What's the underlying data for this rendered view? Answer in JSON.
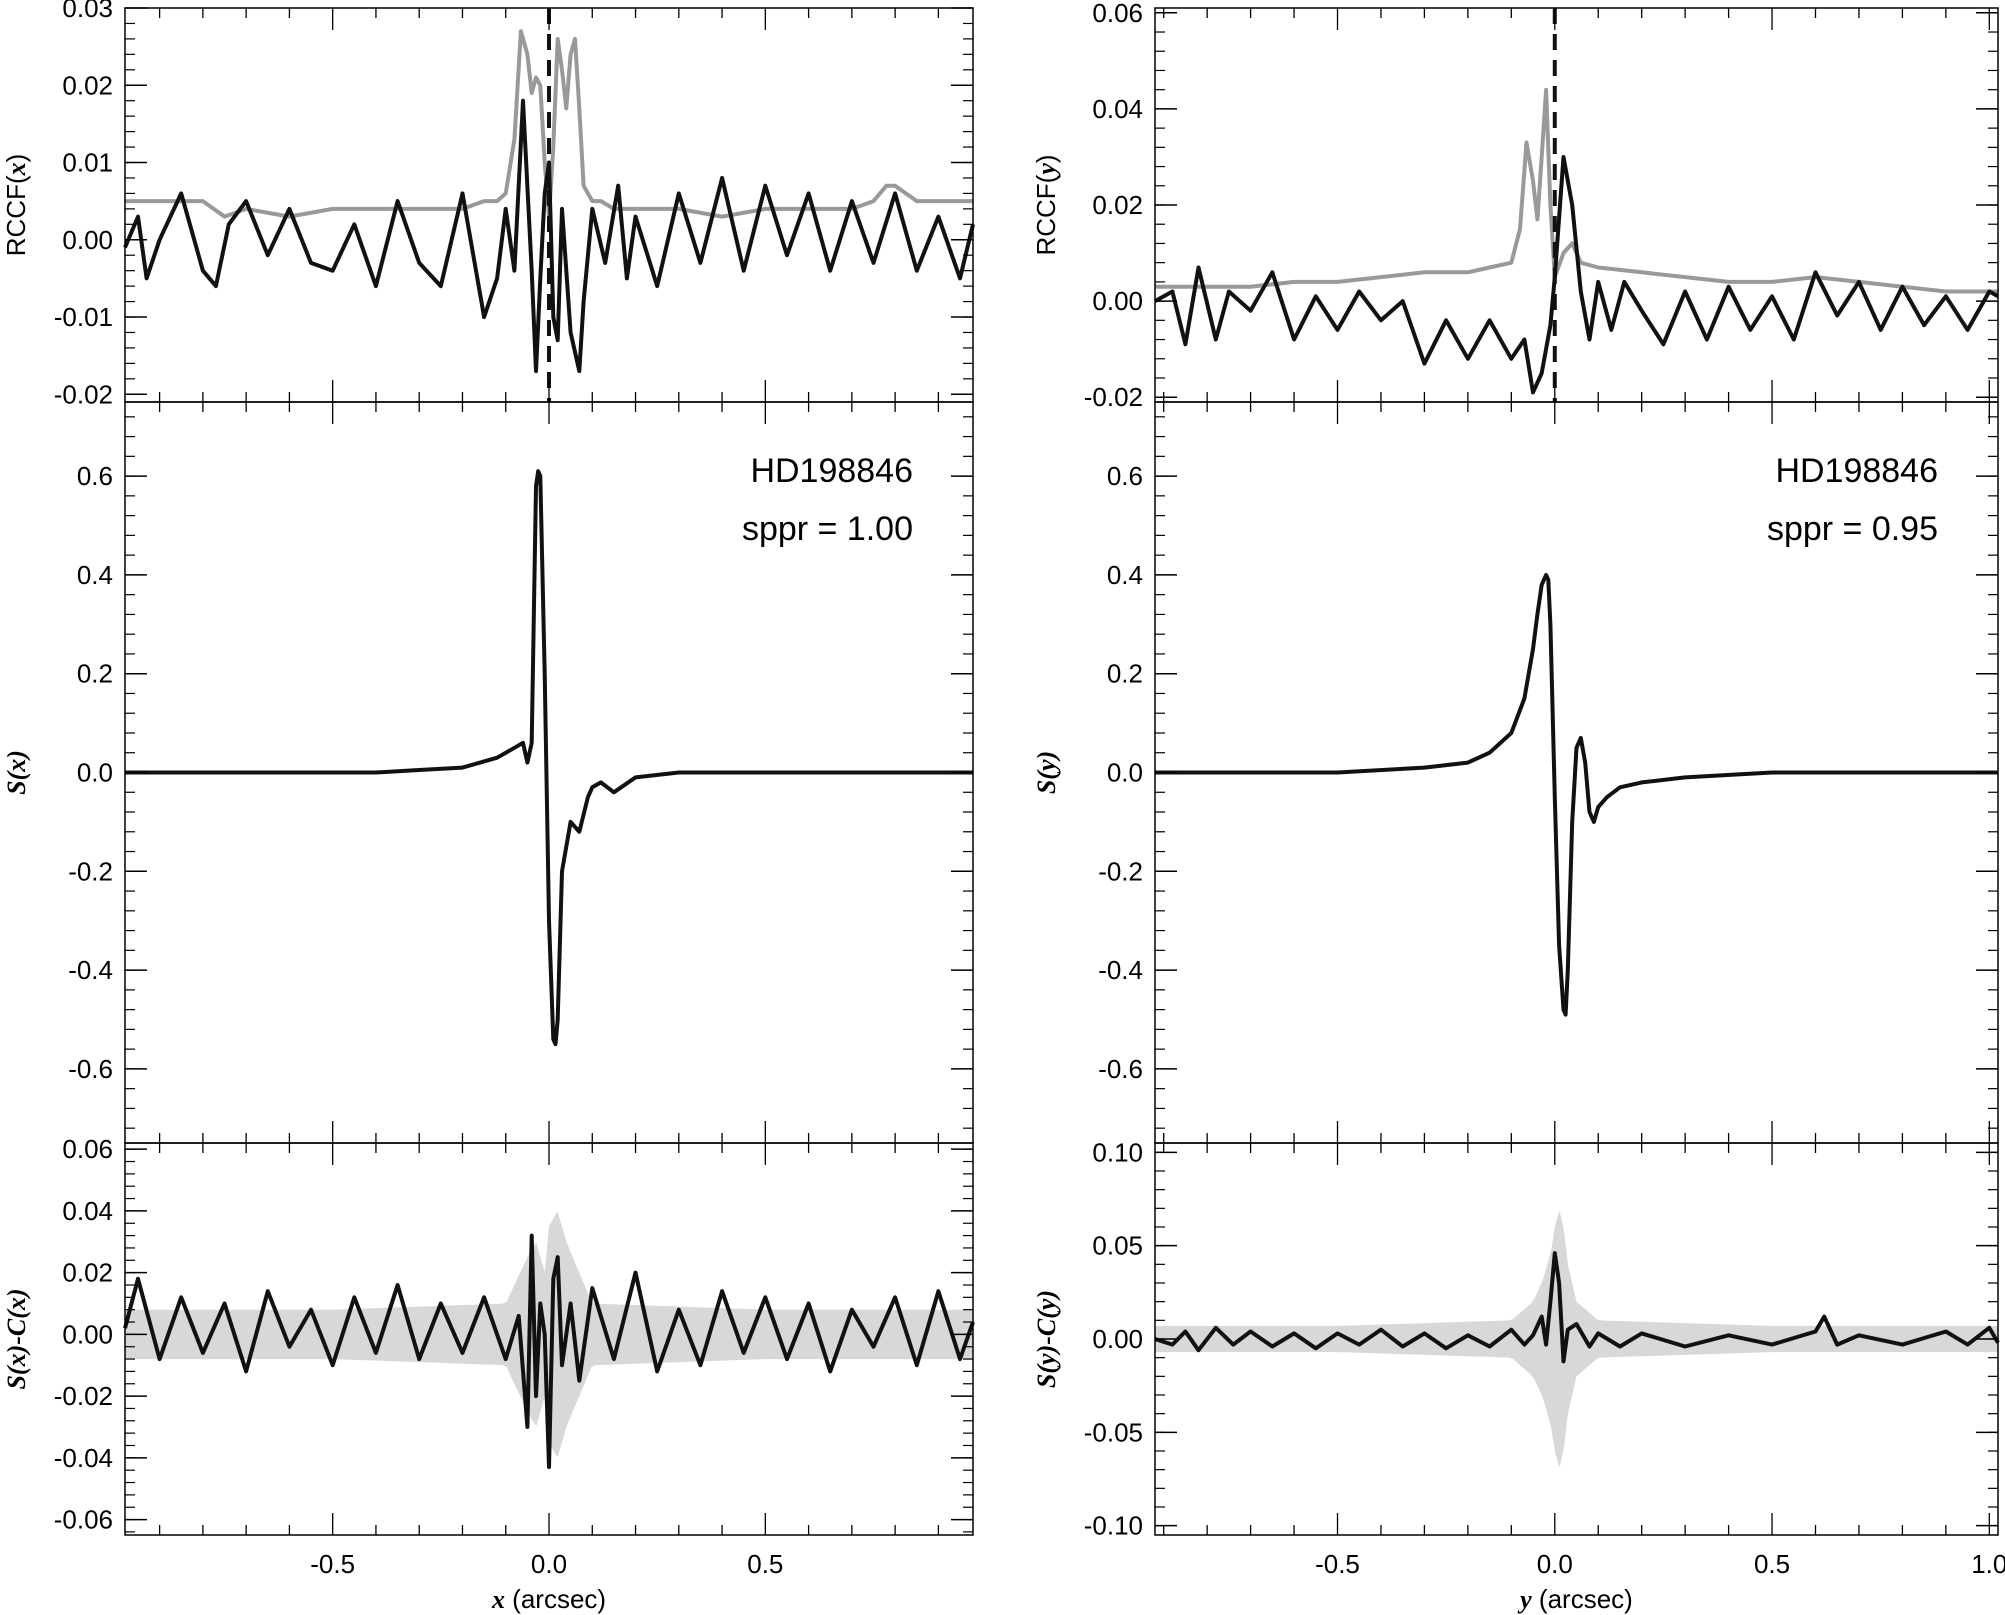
{
  "chart_data": [
    {
      "type": "line",
      "panel": "top-left",
      "ylabel_main": "RCCF(",
      "ylabel_var": "x",
      "ylabel_close": ")",
      "xlim": [
        -0.98,
        0.98
      ],
      "ylim": [
        -0.021,
        0.03
      ],
      "yticks": [
        -0.02,
        -0.01,
        0.0,
        0.01,
        0.02,
        0.03
      ],
      "ytick_labels": [
        "-0.02",
        "-0.01",
        "0.00",
        "0.01",
        "0.02",
        "0.03"
      ],
      "vline_x": 0.0,
      "series": [
        {
          "color": "#999999",
          "x": [
            -0.98,
            -0.8,
            -0.75,
            -0.7,
            -0.6,
            -0.5,
            -0.4,
            -0.3,
            -0.2,
            -0.15,
            -0.12,
            -0.1,
            -0.08,
            -0.065,
            -0.05,
            -0.04,
            -0.03,
            -0.02,
            -0.01,
            0.0,
            0.01,
            0.02,
            0.03,
            0.04,
            0.05,
            0.06,
            0.07,
            0.08,
            0.09,
            0.1,
            0.12,
            0.15,
            0.2,
            0.3,
            0.4,
            0.5,
            0.6,
            0.7,
            0.75,
            0.78,
            0.8,
            0.85,
            0.9,
            0.98
          ],
          "y": [
            0.005,
            0.005,
            0.003,
            0.004,
            0.003,
            0.004,
            0.004,
            0.004,
            0.004,
            0.005,
            0.005,
            0.006,
            0.013,
            0.027,
            0.024,
            0.019,
            0.021,
            0.02,
            0.01,
            0.003,
            0.012,
            0.026,
            0.022,
            0.017,
            0.024,
            0.026,
            0.017,
            0.007,
            0.006,
            0.005,
            0.005,
            0.004,
            0.004,
            0.004,
            0.003,
            0.004,
            0.004,
            0.004,
            0.005,
            0.007,
            0.007,
            0.005,
            0.005,
            0.005
          ]
        },
        {
          "color": "#111111",
          "x": [
            -0.98,
            -0.95,
            -0.93,
            -0.9,
            -0.85,
            -0.8,
            -0.77,
            -0.74,
            -0.7,
            -0.65,
            -0.6,
            -0.55,
            -0.5,
            -0.45,
            -0.4,
            -0.35,
            -0.3,
            -0.25,
            -0.2,
            -0.15,
            -0.12,
            -0.1,
            -0.08,
            -0.06,
            -0.04,
            -0.03,
            -0.02,
            -0.01,
            0.0,
            0.01,
            0.02,
            0.03,
            0.05,
            0.07,
            0.08,
            0.1,
            0.13,
            0.16,
            0.18,
            0.2,
            0.25,
            0.3,
            0.35,
            0.4,
            0.45,
            0.5,
            0.55,
            0.6,
            0.65,
            0.7,
            0.75,
            0.8,
            0.85,
            0.9,
            0.95,
            0.98
          ],
          "y": [
            -0.001,
            0.003,
            -0.005,
            0.0,
            0.006,
            -0.004,
            -0.006,
            0.002,
            0.005,
            -0.002,
            0.004,
            -0.003,
            -0.004,
            0.002,
            -0.006,
            0.005,
            -0.003,
            -0.006,
            0.006,
            -0.01,
            -0.005,
            0.004,
            -0.004,
            0.018,
            -0.004,
            -0.017,
            -0.005,
            0.006,
            0.01,
            -0.01,
            -0.013,
            0.004,
            -0.012,
            -0.017,
            -0.008,
            0.004,
            -0.003,
            0.007,
            -0.005,
            0.003,
            -0.006,
            0.006,
            -0.003,
            0.008,
            -0.004,
            0.007,
            -0.002,
            0.006,
            -0.004,
            0.005,
            -0.003,
            0.006,
            -0.004,
            0.003,
            -0.005,
            0.002
          ]
        }
      ]
    },
    {
      "type": "line",
      "panel": "mid-left",
      "ylabel_var": "S(x)",
      "xlim": [
        -0.98,
        0.98
      ],
      "ylim": [
        -0.75,
        0.75
      ],
      "yticks": [
        -0.6,
        -0.4,
        -0.2,
        0.0,
        0.2,
        0.4,
        0.6
      ],
      "ytick_labels": [
        "-0.6",
        "-0.4",
        "-0.2",
        "0.0",
        "0.2",
        "0.4",
        "0.6"
      ],
      "annotation": [
        "HD198846",
        "sppr = 1.00"
      ],
      "series": [
        {
          "color": "#111111",
          "x": [
            -0.98,
            -0.8,
            -0.6,
            -0.4,
            -0.3,
            -0.2,
            -0.12,
            -0.08,
            -0.06,
            -0.05,
            -0.04,
            -0.03,
            -0.025,
            -0.02,
            -0.01,
            0.0,
            0.01,
            0.015,
            0.02,
            0.03,
            0.05,
            0.07,
            0.09,
            0.1,
            0.12,
            0.15,
            0.2,
            0.3,
            0.5,
            0.7,
            0.98
          ],
          "y": [
            0.0,
            0.0,
            0.0,
            0.0,
            0.005,
            0.01,
            0.03,
            0.05,
            0.06,
            0.02,
            0.06,
            0.58,
            0.61,
            0.6,
            0.2,
            -0.3,
            -0.54,
            -0.55,
            -0.5,
            -0.2,
            -0.1,
            -0.12,
            -0.05,
            -0.03,
            -0.02,
            -0.04,
            -0.01,
            0.0,
            0.0,
            0.0,
            0.0
          ]
        }
      ]
    },
    {
      "type": "line",
      "panel": "bot-left",
      "ylabel_var": "S(x)-C(x)",
      "xlim": [
        -0.98,
        0.98
      ],
      "ylim": [
        -0.065,
        0.062
      ],
      "yticks": [
        -0.06,
        -0.04,
        -0.02,
        0.0,
        0.02,
        0.04,
        0.06
      ],
      "ytick_labels": [
        "-0.06",
        "-0.04",
        "-0.02",
        "0.00",
        "0.02",
        "0.04",
        "0.06"
      ],
      "xticks": [
        -0.5,
        0.0,
        0.5
      ],
      "xtick_labels": [
        "-0.5",
        "0.0",
        "0.5"
      ],
      "xlabel_var": "x",
      "xlabel_text": "(arcsec)",
      "band": {
        "color": "#d8d8d8",
        "x": [
          -0.98,
          -0.5,
          -0.1,
          -0.05,
          -0.03,
          -0.01,
          0.0,
          0.02,
          0.04,
          0.1,
          0.5,
          0.98
        ],
        "half_width": [
          0.008,
          0.008,
          0.01,
          0.025,
          0.03,
          0.02,
          0.035,
          0.04,
          0.03,
          0.01,
          0.008,
          0.008
        ]
      },
      "series": [
        {
          "color": "#111111",
          "x": [
            -0.98,
            -0.95,
            -0.9,
            -0.85,
            -0.8,
            -0.75,
            -0.7,
            -0.65,
            -0.6,
            -0.55,
            -0.5,
            -0.45,
            -0.4,
            -0.35,
            -0.3,
            -0.25,
            -0.2,
            -0.15,
            -0.1,
            -0.07,
            -0.05,
            -0.04,
            -0.03,
            -0.02,
            -0.01,
            0.0,
            0.01,
            0.02,
            0.03,
            0.05,
            0.07,
            0.1,
            0.15,
            0.2,
            0.25,
            0.3,
            0.35,
            0.4,
            0.45,
            0.5,
            0.55,
            0.6,
            0.65,
            0.7,
            0.75,
            0.8,
            0.85,
            0.9,
            0.95,
            0.98
          ],
          "y": [
            0.002,
            0.018,
            -0.008,
            0.012,
            -0.006,
            0.01,
            -0.012,
            0.014,
            -0.004,
            0.008,
            -0.01,
            0.012,
            -0.006,
            0.016,
            -0.008,
            0.01,
            -0.006,
            0.012,
            -0.008,
            0.006,
            -0.03,
            0.032,
            -0.02,
            0.01,
            0.0,
            -0.043,
            0.018,
            0.025,
            -0.01,
            0.01,
            -0.015,
            0.015,
            -0.008,
            0.02,
            -0.012,
            0.008,
            -0.01,
            0.014,
            -0.006,
            0.012,
            -0.008,
            0.01,
            -0.012,
            0.008,
            -0.004,
            0.012,
            -0.01,
            0.014,
            -0.008,
            0.004
          ]
        }
      ]
    },
    {
      "type": "line",
      "panel": "top-right",
      "ylabel_main": "RCCF(",
      "ylabel_var": "y",
      "ylabel_close": ")",
      "xlim": [
        -0.92,
        1.02
      ],
      "ylim": [
        -0.021,
        0.061
      ],
      "yticks": [
        -0.02,
        0.0,
        0.02,
        0.04,
        0.06
      ],
      "ytick_labels": [
        "-0.02",
        "0.00",
        "0.02",
        "0.04",
        "0.06"
      ],
      "vline_x": 0.0,
      "series": [
        {
          "color": "#999999",
          "x": [
            -0.92,
            -0.8,
            -0.7,
            -0.6,
            -0.5,
            -0.4,
            -0.3,
            -0.2,
            -0.15,
            -0.1,
            -0.08,
            -0.065,
            -0.05,
            -0.04,
            -0.03,
            -0.02,
            -0.01,
            0.0,
            0.02,
            0.04,
            0.06,
            0.1,
            0.2,
            0.3,
            0.4,
            0.5,
            0.6,
            0.7,
            0.8,
            0.9,
            1.02
          ],
          "y": [
            0.003,
            0.003,
            0.003,
            0.004,
            0.004,
            0.005,
            0.006,
            0.006,
            0.007,
            0.008,
            0.015,
            0.033,
            0.025,
            0.017,
            0.03,
            0.044,
            0.02,
            0.005,
            0.01,
            0.012,
            0.008,
            0.007,
            0.006,
            0.005,
            0.004,
            0.004,
            0.005,
            0.004,
            0.003,
            0.002,
            0.002
          ]
        },
        {
          "color": "#111111",
          "x": [
            -0.92,
            -0.88,
            -0.85,
            -0.82,
            -0.78,
            -0.75,
            -0.7,
            -0.65,
            -0.6,
            -0.55,
            -0.5,
            -0.45,
            -0.4,
            -0.35,
            -0.3,
            -0.25,
            -0.2,
            -0.15,
            -0.1,
            -0.07,
            -0.05,
            -0.03,
            -0.01,
            0.0,
            0.02,
            0.04,
            0.06,
            0.08,
            0.1,
            0.13,
            0.16,
            0.2,
            0.25,
            0.3,
            0.35,
            0.4,
            0.45,
            0.5,
            0.55,
            0.6,
            0.65,
            0.7,
            0.75,
            0.8,
            0.85,
            0.9,
            0.95,
            1.0,
            1.02
          ],
          "y": [
            0.0,
            0.002,
            -0.009,
            0.007,
            -0.008,
            0.002,
            -0.002,
            0.006,
            -0.008,
            0.001,
            -0.006,
            0.002,
            -0.004,
            0.0,
            -0.013,
            -0.004,
            -0.012,
            -0.004,
            -0.012,
            -0.008,
            -0.019,
            -0.015,
            -0.005,
            0.005,
            0.03,
            0.02,
            0.002,
            -0.008,
            0.004,
            -0.006,
            0.004,
            -0.002,
            -0.009,
            0.002,
            -0.008,
            0.003,
            -0.006,
            0.001,
            -0.008,
            0.006,
            -0.003,
            0.004,
            -0.006,
            0.003,
            -0.005,
            0.001,
            -0.006,
            0.002,
            0.001
          ]
        }
      ]
    },
    {
      "type": "line",
      "panel": "mid-right",
      "ylabel_var": "S(y)",
      "xlim": [
        -0.92,
        1.02
      ],
      "ylim": [
        -0.75,
        0.75
      ],
      "yticks": [
        -0.6,
        -0.4,
        -0.2,
        0.0,
        0.2,
        0.4,
        0.6
      ],
      "ytick_labels": [
        "-0.6",
        "-0.4",
        "-0.2",
        "0.0",
        "0.2",
        "0.4",
        "0.6"
      ],
      "annotation": [
        "HD198846",
        "sppr = 0.95"
      ],
      "series": [
        {
          "color": "#111111",
          "x": [
            -0.92,
            -0.7,
            -0.5,
            -0.3,
            -0.2,
            -0.15,
            -0.1,
            -0.07,
            -0.05,
            -0.04,
            -0.03,
            -0.02,
            -0.015,
            -0.01,
            0.0,
            0.01,
            0.02,
            0.025,
            0.03,
            0.04,
            0.05,
            0.06,
            0.07,
            0.08,
            0.09,
            0.1,
            0.12,
            0.15,
            0.2,
            0.3,
            0.5,
            0.7,
            1.02
          ],
          "y": [
            0.0,
            0.0,
            0.0,
            0.01,
            0.02,
            0.04,
            0.08,
            0.15,
            0.25,
            0.32,
            0.38,
            0.4,
            0.39,
            0.3,
            -0.05,
            -0.35,
            -0.48,
            -0.49,
            -0.4,
            -0.1,
            0.05,
            0.07,
            0.02,
            -0.08,
            -0.1,
            -0.07,
            -0.05,
            -0.03,
            -0.02,
            -0.01,
            0.0,
            0.0,
            0.0
          ]
        }
      ]
    },
    {
      "type": "line",
      "panel": "bot-right",
      "ylabel_var": "S(y)-C(y)",
      "xlim": [
        -0.92,
        1.02
      ],
      "ylim": [
        -0.105,
        0.105
      ],
      "yticks": [
        -0.1,
        -0.05,
        0.0,
        0.05,
        0.1
      ],
      "ytick_labels": [
        "-0.10",
        "-0.05",
        "0.00",
        "0.05",
        "0.10"
      ],
      "xticks": [
        -0.5,
        0.0,
        0.5,
        1.0
      ],
      "xtick_labels": [
        "-0.5",
        "0.0",
        "0.5",
        "1.0"
      ],
      "xlabel_var": "y",
      "xlabel_text": "(arcsec)",
      "band": {
        "color": "#d8d8d8",
        "x": [
          -0.92,
          -0.5,
          -0.1,
          -0.05,
          -0.03,
          -0.01,
          0.0,
          0.01,
          0.02,
          0.03,
          0.05,
          0.1,
          0.5,
          1.02
        ],
        "half_width": [
          0.007,
          0.007,
          0.01,
          0.02,
          0.03,
          0.045,
          0.06,
          0.07,
          0.06,
          0.04,
          0.02,
          0.01,
          0.007,
          0.007
        ]
      },
      "series": [
        {
          "color": "#111111",
          "x": [
            -0.92,
            -0.88,
            -0.85,
            -0.82,
            -0.78,
            -0.74,
            -0.7,
            -0.65,
            -0.6,
            -0.55,
            -0.5,
            -0.45,
            -0.4,
            -0.35,
            -0.3,
            -0.25,
            -0.2,
            -0.15,
            -0.1,
            -0.07,
            -0.05,
            -0.03,
            -0.02,
            -0.01,
            0.0,
            0.01,
            0.02,
            0.03,
            0.05,
            0.08,
            0.1,
            0.15,
            0.2,
            0.3,
            0.4,
            0.5,
            0.6,
            0.62,
            0.65,
            0.7,
            0.8,
            0.9,
            0.95,
            1.0,
            1.02
          ],
          "y": [
            0.0,
            -0.003,
            0.004,
            -0.006,
            0.006,
            -0.003,
            0.004,
            -0.004,
            0.003,
            -0.005,
            0.003,
            -0.003,
            0.005,
            -0.004,
            0.003,
            -0.005,
            0.002,
            -0.004,
            0.005,
            -0.003,
            0.002,
            0.012,
            -0.003,
            0.02,
            0.046,
            0.03,
            -0.012,
            0.005,
            0.008,
            -0.004,
            0.003,
            -0.004,
            0.003,
            -0.004,
            0.002,
            -0.003,
            0.004,
            0.012,
            -0.003,
            0.002,
            -0.003,
            0.004,
            -0.003,
            0.006,
            -0.002
          ]
        }
      ]
    }
  ]
}
